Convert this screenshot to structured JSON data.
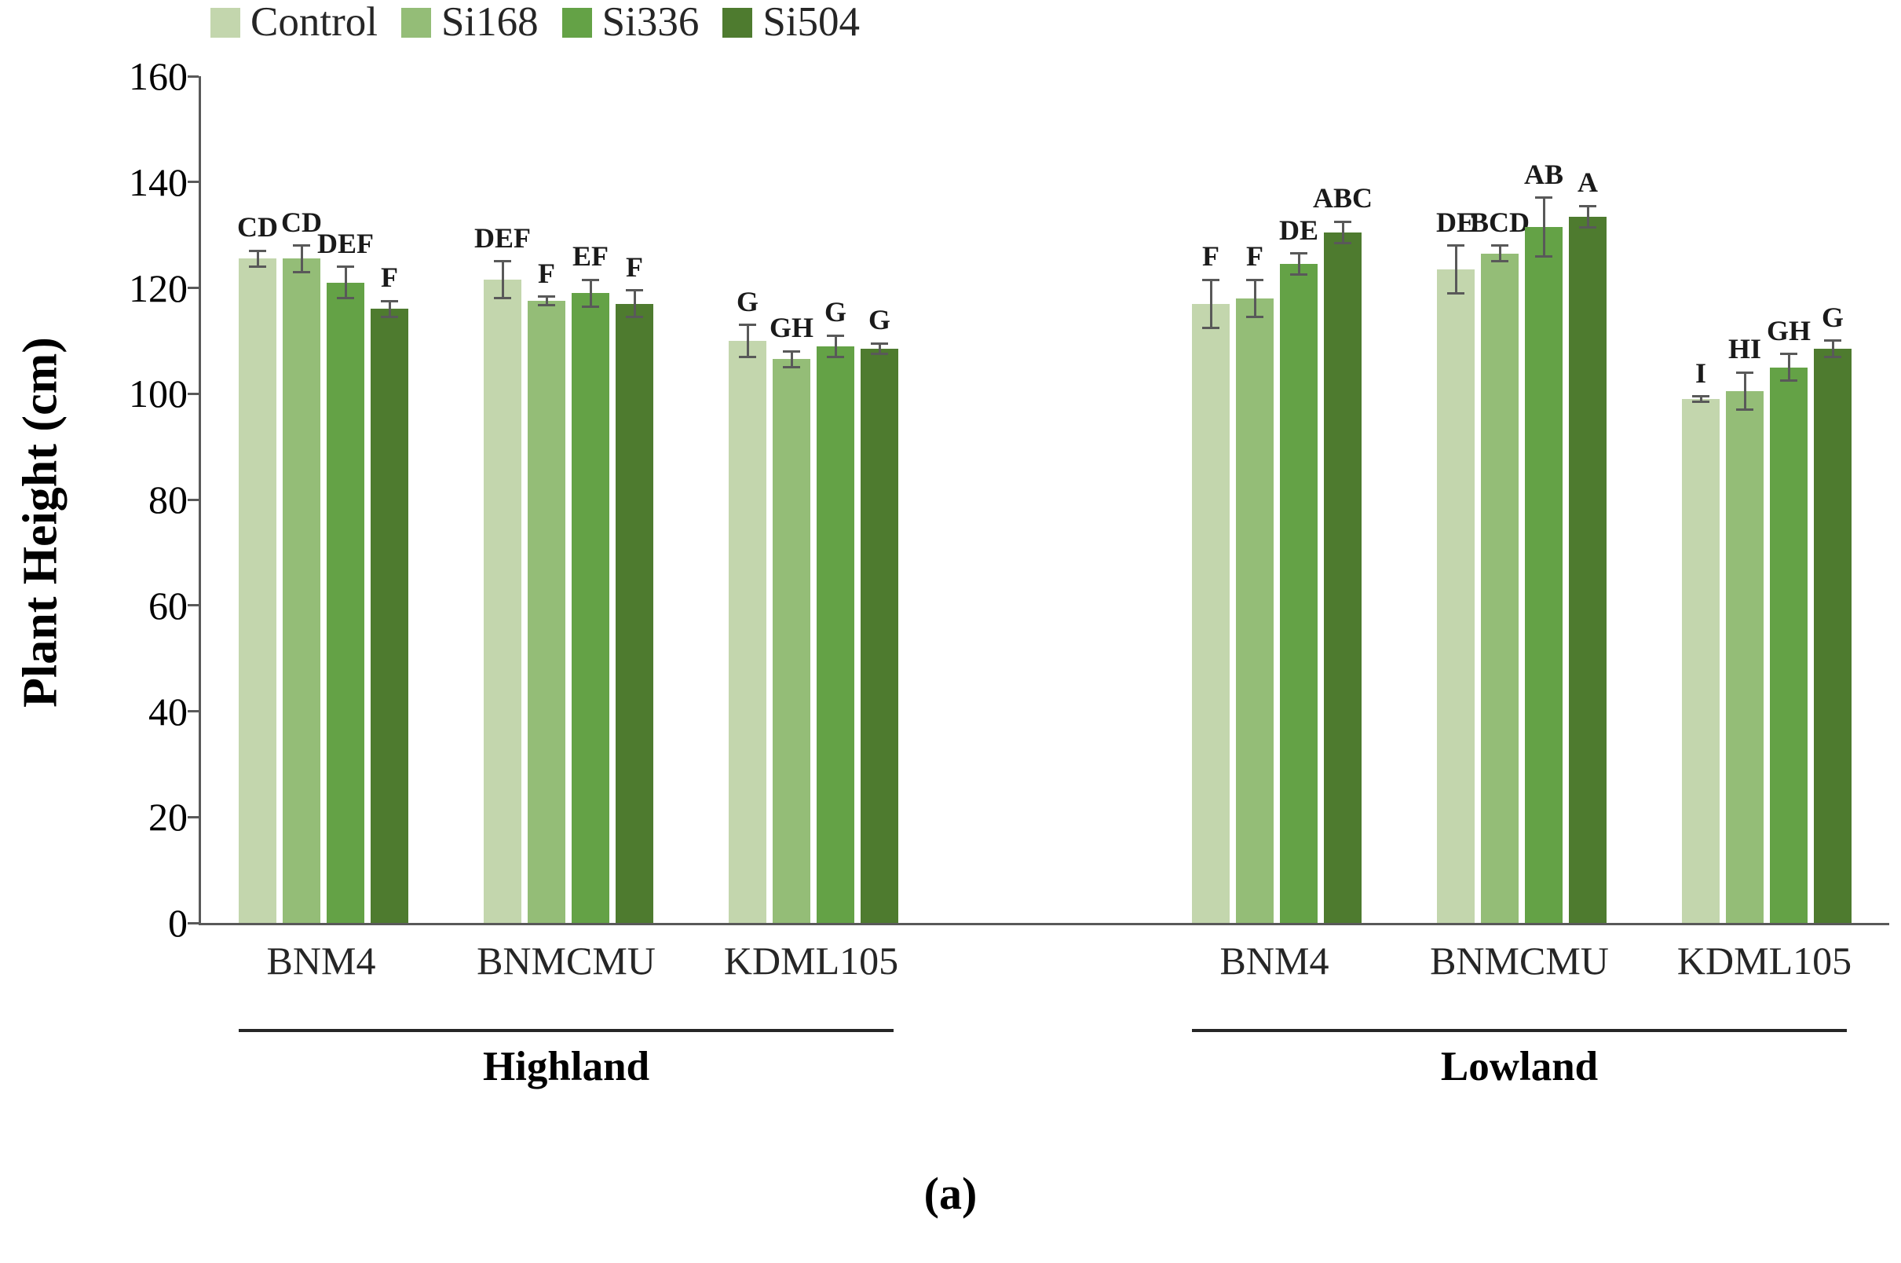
{
  "figure_label": "(a)",
  "legend": {
    "items": [
      {
        "label": "Control",
        "color": "#c3d6ad"
      },
      {
        "label": "Si168",
        "color": "#94bd77"
      },
      {
        "label": "Si336",
        "color": "#64a246"
      },
      {
        "label": "Si504",
        "color": "#4e7b2f"
      }
    ]
  },
  "y_axis": {
    "title": "Plant Height (cm)",
    "tick_values": [
      0,
      20,
      40,
      60,
      80,
      100,
      120,
      140,
      160
    ]
  },
  "chart_data": {
    "type": "bar",
    "title": "",
    "xlabel": "",
    "ylabel": "Plant Height (cm)",
    "ylim": [
      0,
      160
    ],
    "grid": false,
    "legend_position": "top",
    "series_names": [
      "Control",
      "Si168",
      "Si336",
      "Si504"
    ],
    "series_colors": [
      "#c3d6ad",
      "#94bd77",
      "#64a246",
      "#4e7b2f"
    ],
    "error_bar_color": "#595959",
    "sections": [
      {
        "name": "Highland",
        "groups": [
          {
            "category": "BNM4",
            "values": [
              125.5,
              125.5,
              121.0,
              116.0
            ],
            "errors": [
              1.5,
              2.5,
              3.0,
              1.5
            ],
            "letters": [
              "CD",
              "CD",
              "DEF",
              "F"
            ]
          },
          {
            "category": "BNMCMU",
            "values": [
              121.5,
              117.5,
              119.0,
              117.0
            ],
            "errors": [
              3.5,
              0.8,
              2.5,
              2.5
            ],
            "letters": [
              "DEF",
              "F",
              "EF",
              "F"
            ]
          },
          {
            "category": "KDML105",
            "values": [
              110.0,
              106.5,
              109.0,
              108.5
            ],
            "errors": [
              3.0,
              1.5,
              2.0,
              1.0
            ],
            "letters": [
              "G",
              "GH",
              "G",
              "G"
            ]
          }
        ]
      },
      {
        "name": "Lowland",
        "groups": [
          {
            "category": "BNM4",
            "values": [
              117.0,
              118.0,
              124.5,
              130.5
            ],
            "errors": [
              4.5,
              3.5,
              2.0,
              2.0
            ],
            "letters": [
              "F",
              "F",
              "DE",
              "ABC"
            ]
          },
          {
            "category": "BNMCMU",
            "values": [
              123.5,
              126.5,
              131.5,
              133.5
            ],
            "errors": [
              4.5,
              1.5,
              5.5,
              2.0
            ],
            "letters": [
              "DE",
              "BCD",
              "AB",
              "A"
            ]
          },
          {
            "category": "KDML105",
            "values": [
              99.0,
              100.5,
              105.0,
              108.5
            ],
            "errors": [
              0.5,
              3.5,
              2.5,
              1.5
            ],
            "letters": [
              "I",
              "HI",
              "GH",
              "G"
            ]
          }
        ]
      }
    ]
  }
}
